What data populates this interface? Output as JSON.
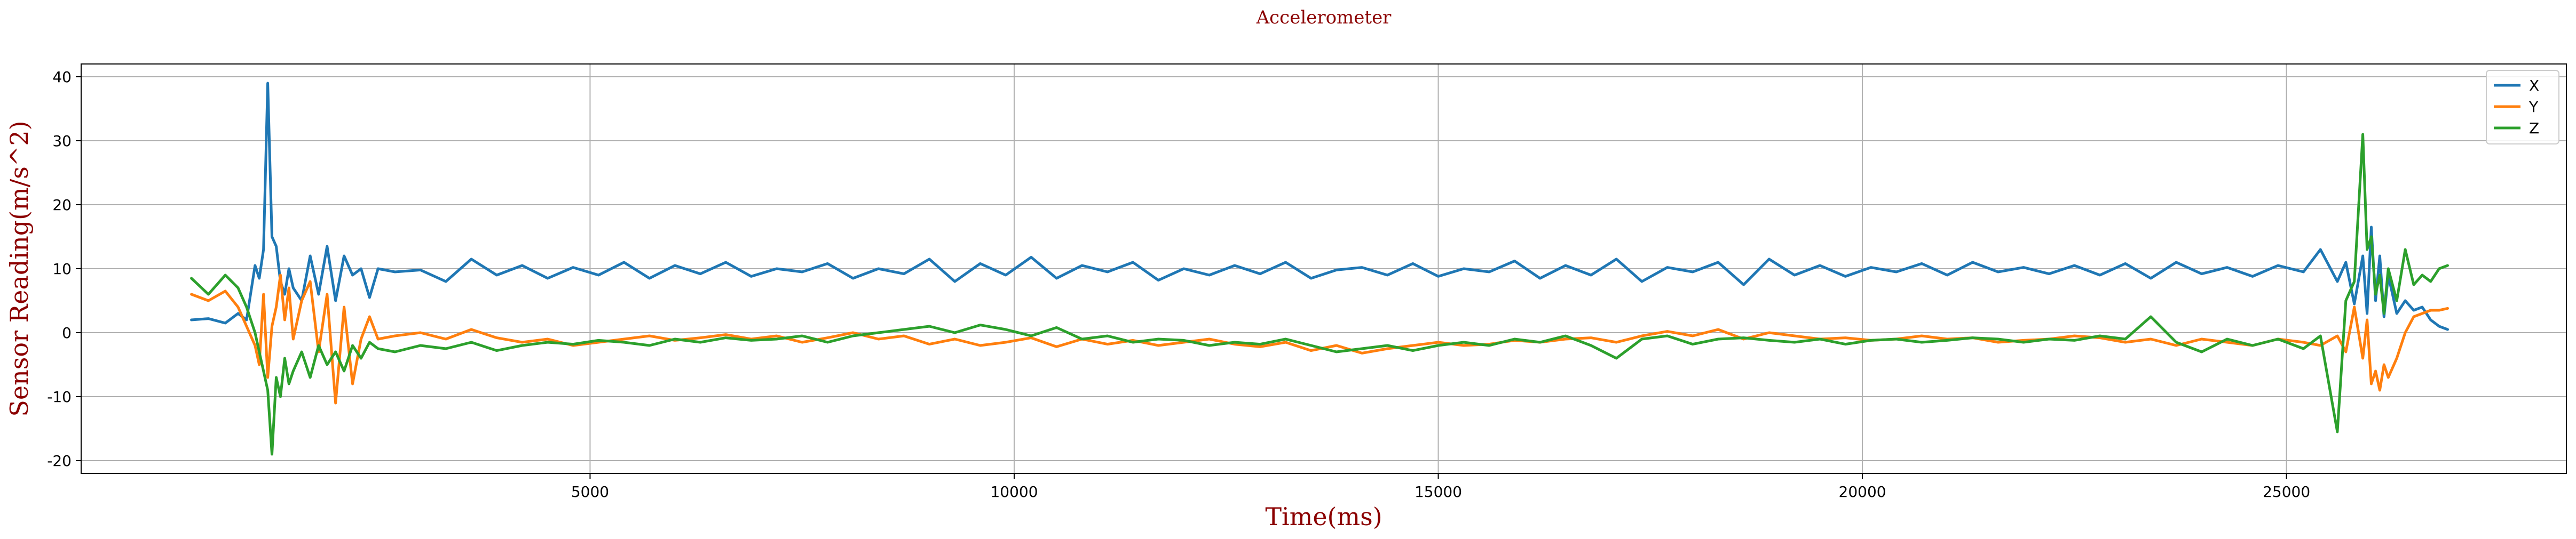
{
  "chart_data": {
    "type": "line",
    "title": "Accelerometer",
    "xlabel": "Time(ms)",
    "ylabel": "Sensor Reading(m/s^2)",
    "xlim": [
      -1000,
      28300
    ],
    "ylim": [
      -22,
      42
    ],
    "xticks": [
      5000,
      10000,
      15000,
      20000,
      25000
    ],
    "yticks": [
      -20,
      -10,
      0,
      10,
      20,
      30,
      40
    ],
    "grid": true,
    "legend_position": "top-right",
    "colors": {
      "X": "#1f77b4",
      "Y": "#ff7f0e",
      "Z": "#2ca02c"
    },
    "series": [
      {
        "name": "X",
        "x": [
          300,
          500,
          700,
          850,
          950,
          1050,
          1100,
          1150,
          1200,
          1250,
          1300,
          1350,
          1400,
          1450,
          1500,
          1600,
          1700,
          1800,
          1900,
          2000,
          2100,
          2200,
          2300,
          2400,
          2500,
          2700,
          3000,
          3300,
          3600,
          3900,
          4200,
          4500,
          4800,
          5100,
          5400,
          5700,
          6000,
          6300,
          6600,
          6900,
          7200,
          7500,
          7800,
          8100,
          8400,
          8700,
          9000,
          9300,
          9600,
          9900,
          10200,
          10500,
          10800,
          11100,
          11400,
          11700,
          12000,
          12300,
          12600,
          12900,
          13200,
          13500,
          13800,
          14100,
          14400,
          14700,
          15000,
          15300,
          15600,
          15900,
          16200,
          16500,
          16800,
          17100,
          17400,
          17700,
          18000,
          18300,
          18600,
          18900,
          19200,
          19500,
          19800,
          20100,
          20400,
          20700,
          21000,
          21300,
          21600,
          21900,
          22200,
          22500,
          22800,
          23100,
          23400,
          23700,
          24000,
          24300,
          24600,
          24900,
          25200,
          25400,
          25600,
          25700,
          25800,
          25900,
          25950,
          26000,
          26050,
          26100,
          26150,
          26200,
          26300,
          26400,
          26500,
          26600,
          26700,
          26800,
          26900
        ],
        "y": [
          2.0,
          2.2,
          1.5,
          3.0,
          2.0,
          10.5,
          8.5,
          13.0,
          39.0,
          15.0,
          13.5,
          8.0,
          6.0,
          10.0,
          7.0,
          5.0,
          12.0,
          6.0,
          13.5,
          5.0,
          12.0,
          9.0,
          10.0,
          5.5,
          10.0,
          9.5,
          9.8,
          8.0,
          11.5,
          9.0,
          10.5,
          8.5,
          10.2,
          9.0,
          11.0,
          8.5,
          10.5,
          9.2,
          11.0,
          8.8,
          10.0,
          9.5,
          10.8,
          8.5,
          10.0,
          9.2,
          11.5,
          8.0,
          10.8,
          9.0,
          11.8,
          8.5,
          10.5,
          9.5,
          11.0,
          8.2,
          10.0,
          9.0,
          10.5,
          9.2,
          11.0,
          8.5,
          9.8,
          10.2,
          9.0,
          10.8,
          8.8,
          10.0,
          9.5,
          11.2,
          8.5,
          10.5,
          9.0,
          11.5,
          8.0,
          10.2,
          9.5,
          11.0,
          7.5,
          11.5,
          9.0,
          10.5,
          8.8,
          10.2,
          9.5,
          10.8,
          9.0,
          11.0,
          9.5,
          10.2,
          9.2,
          10.5,
          9.0,
          10.8,
          8.5,
          11.0,
          9.2,
          10.2,
          8.8,
          10.5,
          9.5,
          13.0,
          8.0,
          11.0,
          4.5,
          12.0,
          3.0,
          16.5,
          5.0,
          12.0,
          2.5,
          9.0,
          3.0,
          5.0,
          3.5,
          4.0,
          2.0,
          1.0,
          0.5
        ]
      },
      {
        "name": "Y",
        "x": [
          300,
          500,
          700,
          850,
          950,
          1050,
          1100,
          1150,
          1200,
          1250,
          1300,
          1350,
          1400,
          1450,
          1500,
          1600,
          1700,
          1800,
          1900,
          2000,
          2100,
          2200,
          2300,
          2400,
          2500,
          2700,
          3000,
          3300,
          3600,
          3900,
          4200,
          4500,
          4800,
          5100,
          5400,
          5700,
          6000,
          6300,
          6600,
          6900,
          7200,
          7500,
          7800,
          8100,
          8400,
          8700,
          9000,
          9300,
          9600,
          9900,
          10200,
          10500,
          10800,
          11100,
          11400,
          11700,
          12000,
          12300,
          12600,
          12900,
          13200,
          13500,
          13800,
          14100,
          14400,
          14700,
          15000,
          15300,
          15600,
          15900,
          16200,
          16500,
          16800,
          17100,
          17400,
          17700,
          18000,
          18300,
          18600,
          18900,
          19200,
          19500,
          19800,
          20100,
          20400,
          20700,
          21000,
          21300,
          21600,
          21900,
          22200,
          22500,
          22800,
          23100,
          23400,
          23700,
          24000,
          24300,
          24600,
          24900,
          25200,
          25400,
          25600,
          25700,
          25800,
          25900,
          25950,
          26000,
          26050,
          26100,
          26150,
          26200,
          26300,
          26400,
          26500,
          26600,
          26700,
          26800,
          26900
        ],
        "y": [
          6.0,
          5.0,
          6.5,
          4.0,
          1.0,
          -2.0,
          -5.0,
          6.0,
          -7.0,
          1.0,
          4.0,
          9.0,
          2.0,
          7.0,
          -1.0,
          5.0,
          8.0,
          -3.0,
          6.0,
          -11.0,
          4.0,
          -8.0,
          -1.0,
          2.5,
          -1.0,
          -0.5,
          0.0,
          -1.0,
          0.5,
          -0.8,
          -1.5,
          -1.0,
          -2.0,
          -1.5,
          -1.0,
          -0.5,
          -1.2,
          -0.8,
          -0.3,
          -1.0,
          -0.5,
          -1.5,
          -0.8,
          0.0,
          -1.0,
          -0.5,
          -1.8,
          -1.0,
          -2.0,
          -1.5,
          -0.8,
          -2.2,
          -1.0,
          -1.8,
          -1.2,
          -2.0,
          -1.5,
          -1.0,
          -1.8,
          -2.2,
          -1.5,
          -2.8,
          -2.0,
          -3.2,
          -2.5,
          -2.0,
          -1.5,
          -2.0,
          -1.8,
          -1.2,
          -1.5,
          -1.0,
          -0.8,
          -1.5,
          -0.5,
          0.2,
          -0.5,
          0.5,
          -1.0,
          0.0,
          -0.5,
          -1.0,
          -0.8,
          -1.2,
          -1.0,
          -0.5,
          -1.0,
          -0.8,
          -1.5,
          -1.2,
          -1.0,
          -0.5,
          -0.8,
          -1.5,
          -1.0,
          -2.0,
          -1.0,
          -1.5,
          -2.0,
          -1.0,
          -1.5,
          -2.0,
          -0.5,
          -3.0,
          4.0,
          -4.0,
          2.0,
          -8.0,
          -6.0,
          -9.0,
          -5.0,
          -7.0,
          -4.0,
          0.0,
          2.5,
          3.0,
          3.5,
          3.5,
          3.8
        ]
      },
      {
        "name": "Z",
        "x": [
          300,
          500,
          700,
          850,
          950,
          1050,
          1100,
          1150,
          1200,
          1250,
          1300,
          1350,
          1400,
          1450,
          1500,
          1600,
          1700,
          1800,
          1900,
          2000,
          2100,
          2200,
          2300,
          2400,
          2500,
          2700,
          3000,
          3300,
          3600,
          3900,
          4200,
          4500,
          4800,
          5100,
          5400,
          5700,
          6000,
          6300,
          6600,
          6900,
          7200,
          7500,
          7800,
          8100,
          8400,
          8700,
          9000,
          9300,
          9600,
          9900,
          10200,
          10500,
          10800,
          11100,
          11400,
          11700,
          12000,
          12300,
          12600,
          12900,
          13200,
          13500,
          13800,
          14100,
          14400,
          14700,
          15000,
          15300,
          15600,
          15900,
          16200,
          16500,
          16800,
          17100,
          17400,
          17700,
          18000,
          18300,
          18600,
          18900,
          19200,
          19500,
          19800,
          20100,
          20400,
          20700,
          21000,
          21300,
          21600,
          21900,
          22200,
          22500,
          22800,
          23100,
          23400,
          23700,
          24000,
          24300,
          24600,
          24900,
          25200,
          25400,
          25600,
          25700,
          25800,
          25900,
          25950,
          26000,
          26050,
          26100,
          26150,
          26200,
          26300,
          26400,
          26500,
          26600,
          26700,
          26800,
          26900
        ],
        "y": [
          8.5,
          6.0,
          9.0,
          7.0,
          4.0,
          0.0,
          -3.0,
          -6.0,
          -9.0,
          -19.0,
          -7.0,
          -10.0,
          -4.0,
          -8.0,
          -6.0,
          -3.0,
          -7.0,
          -2.0,
          -5.0,
          -3.0,
          -6.0,
          -2.0,
          -4.0,
          -1.5,
          -2.5,
          -3.0,
          -2.0,
          -2.5,
          -1.5,
          -2.8,
          -2.0,
          -1.5,
          -1.8,
          -1.2,
          -1.5,
          -2.0,
          -1.0,
          -1.5,
          -0.8,
          -1.2,
          -1.0,
          -0.5,
          -1.5,
          -0.5,
          0.0,
          0.5,
          1.0,
          0.0,
          1.2,
          0.5,
          -0.5,
          0.8,
          -1.0,
          -0.5,
          -1.5,
          -1.0,
          -1.2,
          -2.0,
          -1.5,
          -1.8,
          -1.0,
          -2.0,
          -3.0,
          -2.5,
          -2.0,
          -2.8,
          -2.0,
          -1.5,
          -2.0,
          -1.0,
          -1.5,
          -0.5,
          -2.0,
          -4.0,
          -1.0,
          -0.5,
          -1.8,
          -1.0,
          -0.8,
          -1.2,
          -1.5,
          -1.0,
          -1.8,
          -1.2,
          -1.0,
          -1.5,
          -1.2,
          -0.8,
          -1.0,
          -1.5,
          -1.0,
          -1.2,
          -0.5,
          -1.0,
          2.5,
          -1.5,
          -3.0,
          -1.0,
          -2.0,
          -1.0,
          -2.5,
          -0.5,
          -15.5,
          5.0,
          8.0,
          31.0,
          13.0,
          15.0,
          6.0,
          9.0,
          3.0,
          10.0,
          5.0,
          13.0,
          7.5,
          9.0,
          8.0,
          10.0,
          10.5
        ]
      }
    ]
  }
}
